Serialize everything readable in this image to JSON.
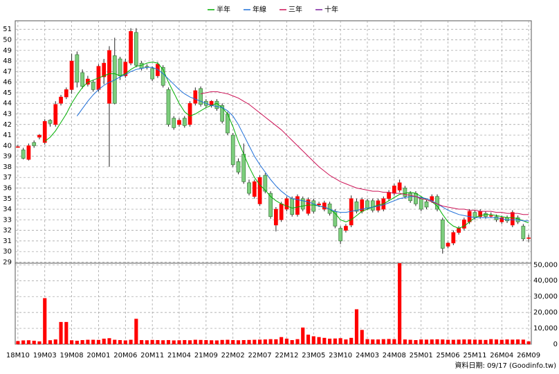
{
  "chart_data": [
    {
      "type": "candlestick",
      "open": [
        39.9,
        39.6,
        38.7,
        40.3,
        40.8,
        40.3,
        42.4,
        42.0,
        44.0,
        44.6,
        45.3,
        48.6,
        46.9,
        45.8,
        46.0,
        45.3,
        46.5,
        44.0,
        48.5,
        48.2,
        46.6,
        47.8,
        50.7,
        47.8,
        47.5,
        47.3,
        46.6,
        47.4,
        45.3,
        42.6,
        42.0,
        42.6,
        42.0,
        44.0,
        45.4,
        44.2,
        43.8,
        44.2,
        43.8,
        43.0,
        41.0,
        38.5,
        39.2,
        36.5,
        35.2,
        34.5,
        37.2,
        35.5,
        32.5,
        33.0,
        34.0,
        35.0,
        33.5,
        35.0,
        33.6,
        34.8,
        34.4,
        34.0,
        34.5,
        33.8,
        32.2,
        32.0,
        32.5,
        34.7,
        33.8,
        34.8,
        34.8,
        33.9,
        34.0,
        35.0,
        35.5,
        35.8,
        36.0,
        35.5,
        35.5,
        35.0,
        34.7,
        34.8,
        35.2,
        33.0,
        30.5,
        30.8,
        31.8,
        32.2,
        32.8,
        33.7,
        33.3,
        33.6,
        33.4,
        33.3,
        32.8,
        33.2,
        32.5,
        33.2,
        32.4,
        31.3
      ],
      "high": [
        40.1,
        39.8,
        40.2,
        40.5,
        41.1,
        42.5,
        42.5,
        44.2,
        44.8,
        45.5,
        48.7,
        48.9,
        47.2,
        46.6,
        46.2,
        47.7,
        48.2,
        49.4,
        50.2,
        48.4,
        48.2,
        51.1,
        51.1,
        48.0,
        47.7,
        47.5,
        47.9,
        47.6,
        45.5,
        42.8,
        42.6,
        42.8,
        44.2,
        45.5,
        45.6,
        44.4,
        44.3,
        44.4,
        44.0,
        43.2,
        41.2,
        38.8,
        40.2,
        36.8,
        36.8,
        37.2,
        37.4,
        35.7,
        34.2,
        34.7,
        35.2,
        35.2,
        35.4,
        35.2,
        35.1,
        35.0,
        34.7,
        34.8,
        34.7,
        34.0,
        32.4,
        32.6,
        35.3,
        35.0,
        35.1,
        35.0,
        35.0,
        35.0,
        35.2,
        35.8,
        36.4,
        36.8,
        36.2,
        35.7,
        35.7,
        35.2,
        34.9,
        35.4,
        35.4,
        33.2,
        30.9,
        32.0,
        32.4,
        33.2,
        34.0,
        33.9,
        34.0,
        33.8,
        33.7,
        33.5,
        33.4,
        33.4,
        33.9,
        33.4,
        32.6,
        31.6
      ],
      "low": [
        39.8,
        38.7,
        38.6,
        39.8,
        40.6,
        40.1,
        41.8,
        41.8,
        43.8,
        44.4,
        44.9,
        45.5,
        45.4,
        45.6,
        45.1,
        45.1,
        45.8,
        38.0,
        43.9,
        46.2,
        46.4,
        47.6,
        47.4,
        47.1,
        47.2,
        46.1,
        46.4,
        45.5,
        41.8,
        41.5,
        41.8,
        41.7,
        41.8,
        43.8,
        43.7,
        43.6,
        43.6,
        43.3,
        42.1,
        41.0,
        38.0,
        37.3,
        36.4,
        35.3,
        35.0,
        34.3,
        35.5,
        33.1,
        31.9,
        32.8,
        33.8,
        33.3,
        33.3,
        33.8,
        33.4,
        33.6,
        34.2,
        33.8,
        33.4,
        32.2,
        30.7,
        31.8,
        32.3,
        33.6,
        33.6,
        33.9,
        33.7,
        33.7,
        33.8,
        34.8,
        35.3,
        35.6,
        35.0,
        34.6,
        34.3,
        33.8,
        34.0,
        34.6,
        33.8,
        29.8,
        30.3,
        30.6,
        31.6,
        32.0,
        32.6,
        33.0,
        33.1,
        33.1,
        33.2,
        32.8,
        32.6,
        32.7,
        32.3,
        32.6,
        31.0,
        30.9
      ],
      "close": [
        39.9,
        38.8,
        40.0,
        40.0,
        41.0,
        42.3,
        42.1,
        43.9,
        44.6,
        45.3,
        48.0,
        46.0,
        45.6,
        46.3,
        45.3,
        47.5,
        47.8,
        49.0,
        44.0,
        46.6,
        47.9,
        50.8,
        47.6,
        47.3,
        47.4,
        46.3,
        47.7,
        45.7,
        42.0,
        41.7,
        42.4,
        41.9,
        44.0,
        45.2,
        43.9,
        43.8,
        44.2,
        43.5,
        42.3,
        41.2,
        38.2,
        37.5,
        36.6,
        35.5,
        36.6,
        37.0,
        35.7,
        33.3,
        34.0,
        34.5,
        35.0,
        33.5,
        35.2,
        34.0,
        34.9,
        33.8,
        34.5,
        34.6,
        33.6,
        32.4,
        31.0,
        32.4,
        35.0,
        33.8,
        34.9,
        34.1,
        33.9,
        34.8,
        35.0,
        35.6,
        36.2,
        36.5,
        35.2,
        34.8,
        34.5,
        34.0,
        34.2,
        35.2,
        34.0,
        30.3,
        30.8,
        31.8,
        32.2,
        33.0,
        33.8,
        33.2,
        33.8,
        33.3,
        33.4,
        33.0,
        33.2,
        32.9,
        33.7,
        32.8,
        31.2,
        31.3
      ],
      "up_color": "#ff0000",
      "down_color": "#7ccd7c",
      "series": [
        {
          "name": "半年",
          "color": "#00b000",
          "values": [
            null,
            null,
            null,
            null,
            null,
            40.4,
            40.8,
            41.4,
            42.2,
            43.0,
            44.0,
            44.8,
            45.5,
            46.0,
            46.2,
            46.4,
            46.6,
            46.8,
            46.8,
            46.6,
            46.8,
            47.2,
            47.5,
            47.6,
            47.8,
            47.9,
            47.8,
            47.2,
            46.0,
            45.0,
            44.0,
            43.2,
            42.8,
            43.0,
            43.3,
            43.6,
            43.8,
            44.0,
            43.6,
            43.0,
            41.8,
            40.4,
            39.2,
            38.0,
            37.0,
            36.3,
            35.8,
            35.2,
            34.8,
            34.5,
            34.3,
            34.1,
            34.2,
            34.3,
            34.4,
            34.4,
            34.3,
            34.2,
            34.0,
            33.6,
            33.0,
            32.8,
            33.0,
            33.4,
            33.8,
            34.0,
            34.2,
            34.4,
            34.5,
            34.8,
            35.1,
            35.4,
            35.5,
            35.6,
            35.5,
            35.2,
            34.9,
            34.7,
            34.3,
            33.5,
            32.8,
            32.4,
            32.2,
            32.4,
            32.8,
            33.2,
            33.4,
            33.5,
            33.5,
            33.4,
            33.3,
            33.2,
            33.2,
            33.1,
            32.9,
            32.7
          ]
        },
        {
          "name": "年線",
          "color": "#1e6fd9",
          "values": [
            null,
            null,
            null,
            null,
            null,
            null,
            null,
            null,
            null,
            null,
            null,
            42.8,
            43.5,
            44.2,
            44.8,
            45.3,
            45.7,
            46.0,
            46.2,
            46.5,
            46.7,
            47.0,
            47.2,
            47.3,
            47.4,
            47.4,
            47.2,
            46.8,
            46.3,
            45.8,
            45.3,
            44.9,
            44.6,
            44.4,
            44.2,
            44.0,
            43.8,
            43.7,
            43.6,
            43.3,
            42.8,
            42.0,
            41.0,
            40.0,
            39.0,
            38.2,
            37.5,
            36.8,
            36.2,
            35.7,
            35.3,
            35.0,
            34.9,
            34.8,
            34.7,
            34.5,
            34.3,
            34.2,
            34.0,
            33.8,
            33.7,
            33.7,
            33.8,
            33.9,
            34.0,
            34.1,
            34.2,
            34.3,
            34.4,
            34.6,
            34.8,
            35.0,
            35.1,
            35.2,
            35.2,
            35.1,
            35.0,
            34.8,
            34.5,
            34.2,
            33.9,
            33.7,
            33.5,
            33.4,
            33.3,
            33.2,
            33.2,
            33.2,
            33.2,
            33.2,
            33.1,
            33.0,
            33.0,
            33.0,
            32.9,
            32.9
          ]
        },
        {
          "name": "三年",
          "color": "#cc1155",
          "values": [
            null,
            null,
            null,
            null,
            null,
            null,
            null,
            null,
            null,
            null,
            null,
            null,
            null,
            null,
            null,
            null,
            null,
            null,
            null,
            null,
            null,
            null,
            null,
            null,
            null,
            null,
            null,
            null,
            null,
            null,
            null,
            null,
            null,
            null,
            44.9,
            45.0,
            45.1,
            45.1,
            45.0,
            44.9,
            44.7,
            44.5,
            44.2,
            43.9,
            43.5,
            43.1,
            42.7,
            42.3,
            41.9,
            41.5,
            41.0,
            40.5,
            40.0,
            39.5,
            39.0,
            38.5,
            38.0,
            37.6,
            37.2,
            36.9,
            36.6,
            36.4,
            36.2,
            36.0,
            35.9,
            35.8,
            35.7,
            35.7,
            35.6,
            35.6,
            35.5,
            35.5,
            35.4,
            35.3,
            35.2,
            35.0,
            34.9,
            34.7,
            34.5,
            34.3,
            34.2,
            34.1,
            34.0,
            34.0,
            33.9,
            33.9,
            33.8,
            33.8,
            33.8,
            33.7,
            33.7,
            33.6,
            33.6,
            33.6,
            33.5,
            33.5
          ]
        },
        {
          "name": "十年",
          "color": "#7a1f9e",
          "values": [
            null,
            null,
            null,
            null,
            null,
            null,
            null,
            null,
            null,
            null,
            null,
            null,
            null,
            null,
            null,
            null,
            null,
            null,
            null,
            null,
            null,
            null,
            null,
            null,
            null,
            null,
            null,
            null,
            null,
            null,
            null,
            null,
            null,
            null,
            null,
            null,
            null,
            null,
            null,
            null,
            null,
            null,
            null,
            null,
            null,
            null,
            null,
            null,
            null,
            null,
            null,
            null,
            null,
            null,
            null,
            null,
            null,
            null,
            null,
            null,
            null,
            null,
            null,
            null,
            null,
            null,
            null,
            null,
            null,
            null,
            null,
            null,
            null,
            null,
            null,
            null,
            null,
            null,
            null,
            null,
            null,
            null,
            null,
            null,
            null,
            null,
            null,
            null,
            null,
            null,
            null,
            null,
            null,
            null,
            null,
            null
          ]
        }
      ],
      "ylim": [
        28.9,
        51.8
      ],
      "yticks": [
        29,
        30,
        31,
        32,
        33,
        34,
        35,
        36,
        37,
        38,
        39,
        40,
        41,
        42,
        43,
        44,
        45,
        46,
        47,
        48,
        49,
        50,
        51
      ],
      "grid": true
    },
    {
      "type": "bar",
      "categories": [
        "18M10",
        null,
        null,
        null,
        null,
        "19M03",
        null,
        null,
        null,
        null,
        "19M08",
        null,
        null,
        null,
        null,
        "20M01",
        null,
        null,
        null,
        null,
        "20M06",
        null,
        null,
        null,
        null,
        "20M11",
        null,
        null,
        null,
        null,
        "21M04",
        null,
        null,
        null,
        null,
        "21M09",
        null,
        null,
        null,
        null,
        "22M02",
        null,
        null,
        null,
        null,
        "22M07",
        null,
        null,
        null,
        null,
        "22M12",
        null,
        null,
        null,
        null,
        "23M05",
        null,
        null,
        null,
        null,
        "23M10",
        null,
        null,
        null,
        null,
        "24M03",
        null,
        null,
        null,
        null,
        "24M08",
        null,
        null,
        null,
        null,
        "25M01",
        null,
        null,
        null,
        null,
        "25M06",
        null,
        null,
        null,
        null,
        "25M11",
        null,
        null,
        null,
        null,
        "26M04",
        null,
        null,
        null,
        null,
        "26M09"
      ],
      "values": [
        2000,
        2400,
        2500,
        2200,
        1800,
        29000,
        2500,
        3000,
        14000,
        14000,
        2500,
        2200,
        2600,
        2800,
        2800,
        2700,
        3500,
        3800,
        2800,
        2600,
        2400,
        2800,
        16000,
        2600,
        2500,
        2700,
        2600,
        2500,
        2600,
        2400,
        2500,
        2600,
        2500,
        2800,
        2700,
        2600,
        2500,
        2400,
        2700,
        2800,
        2600,
        2500,
        2600,
        2700,
        2800,
        2900,
        3000,
        3200,
        3100,
        4500,
        3500,
        2600,
        3200,
        10500,
        6000,
        5000,
        4500,
        4000,
        3500,
        3600,
        3800,
        3000,
        4000,
        22000,
        9000,
        3200,
        3000,
        3000,
        3200,
        3300,
        3200,
        51000,
        3000,
        2800,
        2600,
        3000,
        2900,
        3000,
        3100,
        3000,
        2800,
        2800,
        2900,
        3000,
        3000,
        2900,
        2800,
        2700,
        3200,
        3000,
        2800,
        3000,
        2900,
        3000,
        2900,
        1800
      ],
      "color": "#ff0000",
      "ylim": [
        0,
        51000
      ],
      "yticks": [
        0,
        {
          "value": 10000,
          "label": "10,000"
        },
        {
          "value": 20000,
          "label": "20,000"
        },
        {
          "value": 30000,
          "label": "30,000"
        },
        {
          "value": 40000,
          "label": "40,000"
        },
        {
          "value": 50000,
          "label": "50,000"
        }
      ],
      "grid": true
    }
  ],
  "footer": "資料日期: 09/17 (Goodinfo.tw)"
}
